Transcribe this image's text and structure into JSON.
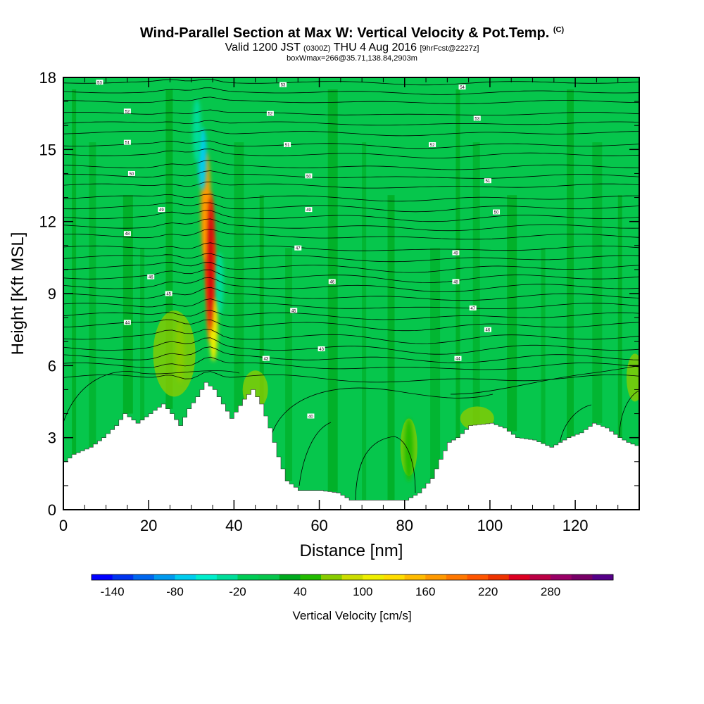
{
  "header": {
    "title": "Wind-Parallel Section at Max W: Vertical Velocity & Pot.Temp.",
    "copyright": "(C)",
    "valid_main": "Valid 1200 JST",
    "valid_utc": "(0300Z)",
    "valid_date": "THU 4 Aug 2016",
    "forecast": "[9hrFcst@2227z]",
    "box_info": "boxWmax=266@35.71,138.84,2903m"
  },
  "chart_data": {
    "type": "heatmap",
    "xlabel": "Distance [nm]",
    "ylabel": "Height [Kft MSL]",
    "xlim": [
      0,
      135
    ],
    "ylim": [
      0,
      18
    ],
    "x_ticks": [
      "0",
      "20",
      "40",
      "60",
      "80",
      "100",
      "120"
    ],
    "y_ticks": [
      "0",
      "3",
      "6",
      "9",
      "12",
      "15",
      "18"
    ],
    "background_w_color": "#06c64c",
    "terrain_kft": [
      [
        0,
        2.0
      ],
      [
        2,
        2.3
      ],
      [
        6,
        2.6
      ],
      [
        9,
        3.0
      ],
      [
        12,
        3.5
      ],
      [
        14,
        4.0
      ],
      [
        17,
        3.6
      ],
      [
        20,
        4.0
      ],
      [
        23,
        4.4
      ],
      [
        25,
        4.0
      ],
      [
        27,
        3.5
      ],
      [
        29,
        4.2
      ],
      [
        31,
        4.7
      ],
      [
        33,
        5.3
      ],
      [
        35,
        5.0
      ],
      [
        37,
        4.4
      ],
      [
        39,
        3.8
      ],
      [
        42,
        4.6
      ],
      [
        44,
        5.0
      ],
      [
        46,
        4.4
      ],
      [
        48,
        3.4
      ],
      [
        50,
        2.2
      ],
      [
        52,
        1.2
      ],
      [
        55,
        0.8
      ],
      [
        60,
        0.8
      ],
      [
        64,
        0.7
      ],
      [
        67,
        0.4
      ],
      [
        72,
        0.4
      ],
      [
        80,
        0.4
      ],
      [
        83,
        0.7
      ],
      [
        86,
        1.3
      ],
      [
        88,
        2.1
      ],
      [
        90,
        2.8
      ],
      [
        92,
        3.0
      ],
      [
        95,
        3.5
      ],
      [
        100,
        3.6
      ],
      [
        103,
        3.4
      ],
      [
        106,
        3.0
      ],
      [
        110,
        2.9
      ],
      [
        114,
        2.6
      ],
      [
        116,
        2.8
      ],
      [
        118,
        3.0
      ],
      [
        121,
        3.2
      ],
      [
        124,
        3.6
      ],
      [
        127,
        3.4
      ],
      [
        130,
        3.0
      ],
      [
        132,
        2.8
      ],
      [
        135,
        2.6
      ]
    ],
    "w_features": [
      {
        "x": 34.3,
        "y": 11.0,
        "w_cms": 220
      },
      {
        "x": 34.6,
        "y": 9.2,
        "w_cms": 200
      },
      {
        "x": 33.4,
        "y": 12.6,
        "w_cms": 160
      },
      {
        "x": 32.6,
        "y": 14.6,
        "w_cms": -80
      },
      {
        "x": 31.3,
        "y": 15.8,
        "w_cms": -40
      },
      {
        "x": 36.6,
        "y": 9.4,
        "w_cms": -40
      },
      {
        "x": 35.2,
        "y": 7.5,
        "w_cms": 100
      },
      {
        "x": 27.3,
        "y": 6.6,
        "w_cms": 60
      },
      {
        "x": 81.0,
        "y": 2.5,
        "w_cms": 40
      }
    ],
    "theta_contours_kft": [
      [
        5.5,
        6.0,
        6.35,
        6.75,
        7.2,
        7.7,
        8.1,
        8.5,
        8.9,
        9.3,
        9.7,
        10.1,
        10.5,
        10.9,
        11.4,
        11.8,
        12.2,
        12.6,
        13.0,
        13.5,
        13.9,
        14.3,
        14.8,
        15.2,
        15.7,
        16.1,
        16.5,
        17.0,
        17.4,
        17.8
      ]
    ],
    "contour_labels": [
      {
        "x": 8.5,
        "y": 17.8,
        "text": "53"
      },
      {
        "x": 15,
        "y": 16.6,
        "text": "52"
      },
      {
        "x": 15,
        "y": 15.3,
        "text": "51"
      },
      {
        "x": 16,
        "y": 14.0,
        "text": "50"
      },
      {
        "x": 23,
        "y": 12.5,
        "text": "49"
      },
      {
        "x": 15,
        "y": 11.5,
        "text": "48"
      },
      {
        "x": 20.5,
        "y": 9.7,
        "text": "46"
      },
      {
        "x": 24.7,
        "y": 9.0,
        "text": "45"
      },
      {
        "x": 15,
        "y": 7.8,
        "text": "44"
      },
      {
        "x": 51.5,
        "y": 17.7,
        "text": "53"
      },
      {
        "x": 48.5,
        "y": 16.5,
        "text": "52"
      },
      {
        "x": 52.5,
        "y": 15.2,
        "text": "51"
      },
      {
        "x": 57.5,
        "y": 13.9,
        "text": "50"
      },
      {
        "x": 57.5,
        "y": 12.5,
        "text": "49"
      },
      {
        "x": 55,
        "y": 10.9,
        "text": "47"
      },
      {
        "x": 63,
        "y": 9.5,
        "text": "46"
      },
      {
        "x": 54,
        "y": 8.3,
        "text": "45"
      },
      {
        "x": 60.5,
        "y": 6.7,
        "text": "43"
      },
      {
        "x": 47.5,
        "y": 6.3,
        "text": "43"
      },
      {
        "x": 58,
        "y": 3.9,
        "text": "40"
      },
      {
        "x": 93.5,
        "y": 17.6,
        "text": "54"
      },
      {
        "x": 97,
        "y": 16.3,
        "text": "53"
      },
      {
        "x": 86.5,
        "y": 15.2,
        "text": "52"
      },
      {
        "x": 99.5,
        "y": 13.7,
        "text": "51"
      },
      {
        "x": 101.5,
        "y": 12.4,
        "text": "50"
      },
      {
        "x": 92,
        "y": 10.7,
        "text": "49"
      },
      {
        "x": 92,
        "y": 9.5,
        "text": "48"
      },
      {
        "x": 96,
        "y": 8.4,
        "text": "47"
      },
      {
        "x": 99.5,
        "y": 7.5,
        "text": "46"
      },
      {
        "x": 92.5,
        "y": 6.3,
        "text": "44"
      }
    ],
    "colorbar": {
      "title": "Vertical Velocity [cm/s]",
      "tick_labels": [
        "-140",
        "-80",
        "-20",
        "40",
        "100",
        "160",
        "220",
        "280"
      ],
      "colors": [
        "#0000ff",
        "#0033ee",
        "#0066ee",
        "#0099ee",
        "#00ccee",
        "#00eecc",
        "#00dd99",
        "#00cc55",
        "#06c64c",
        "#00aa1e",
        "#22bb00",
        "#88cc00",
        "#ccdd00",
        "#eeee00",
        "#ffdd00",
        "#ffbb00",
        "#ff9900",
        "#ff7700",
        "#ff5500",
        "#ee3300",
        "#dd0022",
        "#bb0044",
        "#990066",
        "#770066",
        "#550088"
      ]
    }
  }
}
